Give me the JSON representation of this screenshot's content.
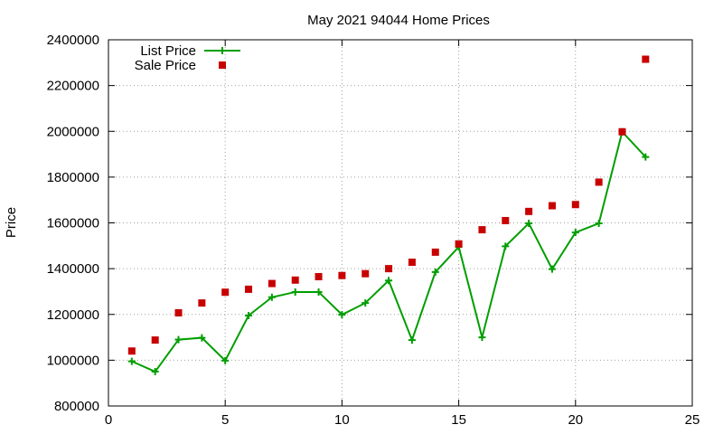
{
  "chart_data": {
    "type": "line",
    "title": "May 2021 94044 Home Prices",
    "xlabel": "",
    "ylabel": "Price",
    "xlim": [
      0,
      25
    ],
    "ylim": [
      800000,
      2400000
    ],
    "xticks": [
      0,
      5,
      10,
      15,
      20,
      25
    ],
    "yticks": [
      800000,
      1000000,
      1200000,
      1400000,
      1600000,
      1800000,
      2000000,
      2200000,
      2400000
    ],
    "grid": true,
    "legend_position": "top-left",
    "series": [
      {
        "name": "List Price",
        "style": "line+plus",
        "color": "#009e00",
        "x": [
          1,
          2,
          3,
          4,
          5,
          6,
          7,
          8,
          9,
          10,
          11,
          12,
          13,
          14,
          15,
          16,
          17,
          18,
          19,
          20,
          21,
          22,
          23
        ],
        "values": [
          995000,
          950000,
          1090000,
          1098000,
          998000,
          1195000,
          1275000,
          1298000,
          1298000,
          1199000,
          1250000,
          1348000,
          1088000,
          1385000,
          1495000,
          1100000,
          1498000,
          1598000,
          1398000,
          1558000,
          1598000,
          1998000,
          1888000
        ]
      },
      {
        "name": "Sale Price",
        "style": "square",
        "color": "#c80000",
        "x": [
          1,
          2,
          3,
          4,
          5,
          6,
          7,
          8,
          9,
          10,
          11,
          12,
          13,
          14,
          15,
          16,
          17,
          18,
          19,
          20,
          21,
          22,
          23
        ],
        "values": [
          1040000,
          1088000,
          1207000,
          1250000,
          1297000,
          1310000,
          1335000,
          1350000,
          1365000,
          1370000,
          1378000,
          1400000,
          1428000,
          1472000,
          1508000,
          1570000,
          1610000,
          1650000,
          1675000,
          1680000,
          1778000,
          1998000,
          2315000
        ]
      }
    ]
  }
}
